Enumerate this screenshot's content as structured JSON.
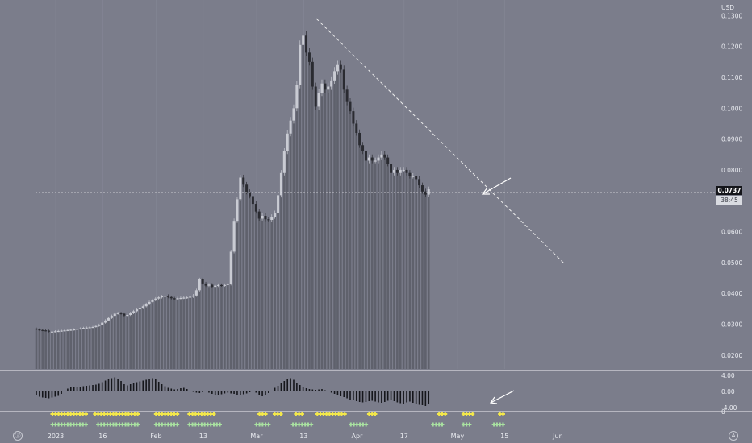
{
  "currency_label": "USD",
  "price_badge": "0.0737",
  "time_badge": "38:45",
  "left_corner_icon": "info-icon",
  "right_corner_icon": "auto-scale-icon",
  "colors": {
    "background": "#7b7d8b",
    "up_candle": "#c9cbd3",
    "down_candle": "#2a2b31",
    "volume_bar": "#5f616c",
    "signal_yellow": "#f3e84a",
    "signal_green": "#a8e0a0",
    "trendline": "#eeeeee"
  },
  "chart_data": [
    {
      "type": "candlestick",
      "currency": "USD",
      "ylim": [
        0.0155,
        0.1335
      ],
      "y_ticks": [
        "0.1300",
        "0.1200",
        "0.1100",
        "0.1000",
        "0.0900",
        "0.0800",
        "0.0600",
        "0.0500",
        "0.0400",
        "0.0300",
        "0.0200"
      ],
      "x_ticks": [
        "2023",
        "16",
        "Feb",
        "13",
        "Mar",
        "13",
        "Apr",
        "17",
        "May",
        "15",
        "Jun"
      ],
      "last_price": 0.0737,
      "close": [
        0.0283,
        0.0281,
        0.028,
        0.0279,
        0.0276,
        0.0276,
        0.0277,
        0.0278,
        0.0279,
        0.028,
        0.0281,
        0.0282,
        0.0283,
        0.0285,
        0.0286,
        0.0288,
        0.0289,
        0.029,
        0.0291,
        0.0294,
        0.0298,
        0.0305,
        0.0312,
        0.032,
        0.0327,
        0.0334,
        0.0336,
        0.0334,
        0.0328,
        0.033,
        0.0336,
        0.0342,
        0.0348,
        0.0352,
        0.0358,
        0.0365,
        0.0372,
        0.0378,
        0.0383,
        0.0387,
        0.039,
        0.0392,
        0.0388,
        0.0384,
        0.0382,
        0.0384,
        0.0385,
        0.0386,
        0.0387,
        0.0389,
        0.0393,
        0.041,
        0.0445,
        0.0432,
        0.0425,
        0.0428,
        0.0421,
        0.0425,
        0.0427,
        0.0426,
        0.0427,
        0.043,
        0.0535,
        0.0635,
        0.0705,
        0.0775,
        0.0752,
        0.0728,
        0.0715,
        0.069,
        0.0665,
        0.0642,
        0.0651,
        0.064,
        0.0638,
        0.0648,
        0.066,
        0.0718,
        0.079,
        0.086,
        0.0918,
        0.096,
        0.1,
        0.1075,
        0.1205,
        0.1235,
        0.118,
        0.115,
        0.107,
        0.1005,
        0.105,
        0.108,
        0.106,
        0.107,
        0.109,
        0.112,
        0.114,
        0.1125,
        0.106,
        0.102,
        0.099,
        0.095,
        0.092,
        0.088,
        0.086,
        0.083,
        0.084,
        0.083,
        0.083,
        0.084,
        0.085,
        0.084,
        0.082,
        0.079,
        0.08,
        0.079,
        0.08,
        0.08,
        0.079,
        0.078,
        0.078,
        0.077,
        0.075,
        0.073,
        0.072,
        0.0737
      ],
      "volume_note": ""
    },
    {
      "type": "oscillator",
      "y_ticks": [
        "4.00",
        "0.00",
        "-4.00"
      ],
      "values": [
        -1.0,
        -1.3,
        -1.5,
        -1.6,
        -1.7,
        -1.5,
        -1.3,
        -1.1,
        -0.6,
        0.1,
        0.7,
        1.0,
        1.1,
        1.2,
        1.1,
        1.3,
        1.4,
        1.5,
        1.6,
        1.7,
        1.9,
        2.3,
        2.7,
        3.1,
        3.3,
        3.5,
        3.2,
        2.6,
        1.8,
        1.5,
        1.8,
        2.1,
        2.3,
        2.5,
        2.7,
        2.9,
        3.1,
        3.3,
        3.0,
        2.4,
        1.8,
        1.3,
        0.9,
        0.7,
        0.5,
        0.6,
        0.8,
        0.9,
        0.6,
        0.2,
        -0.1,
        -0.3,
        -0.4,
        -0.2,
        0.0,
        -0.3,
        -0.6,
        -0.8,
        -0.9,
        -0.7,
        -0.5,
        -0.3,
        -0.5,
        -0.6,
        -0.8,
        -0.9,
        -0.7,
        -0.5,
        -0.2,
        0.0,
        -0.3,
        -0.8,
        -1.2,
        -0.9,
        -0.4,
        0.2,
        0.9,
        1.4,
        2.0,
        2.6,
        3.0,
        3.3,
        2.9,
        2.2,
        1.6,
        1.1,
        0.8,
        0.6,
        0.5,
        0.4,
        0.5,
        0.6,
        0.3,
        0.0,
        -0.3,
        -0.6,
        -0.9,
        -1.2,
        -1.4,
        -1.7,
        -2.0,
        -2.2,
        -2.4,
        -2.6,
        -2.7,
        -2.6,
        -2.4,
        -2.3,
        -2.5,
        -2.7,
        -2.8,
        -2.6,
        -2.3,
        -2.1,
        -2.4,
        -2.7,
        -2.9,
        -3.0,
        -2.7,
        -2.5,
        -2.8,
        -3.1,
        -3.3,
        -3.4,
        -3.6,
        -3.2
      ],
      "ylim": [
        -4.6,
        4.6
      ]
    },
    {
      "type": "signal-markers",
      "yellow_index_ranges": [
        [
          5,
          16
        ],
        [
          19,
          33
        ],
        [
          39,
          46
        ],
        [
          50,
          58
        ],
        [
          73,
          75
        ],
        [
          78,
          80
        ],
        [
          85,
          87
        ],
        [
          92,
          101
        ],
        [
          109,
          111
        ],
        [
          132,
          134
        ],
        [
          140,
          143
        ],
        [
          152,
          153
        ]
      ],
      "green_index_ranges": [
        [
          5,
          16
        ],
        [
          20,
          33
        ],
        [
          39,
          46
        ],
        [
          50,
          60
        ],
        [
          72,
          76
        ],
        [
          84,
          90
        ],
        [
          103,
          108
        ],
        [
          130,
          133
        ],
        [
          140,
          142
        ],
        [
          150,
          153
        ]
      ]
    }
  ]
}
